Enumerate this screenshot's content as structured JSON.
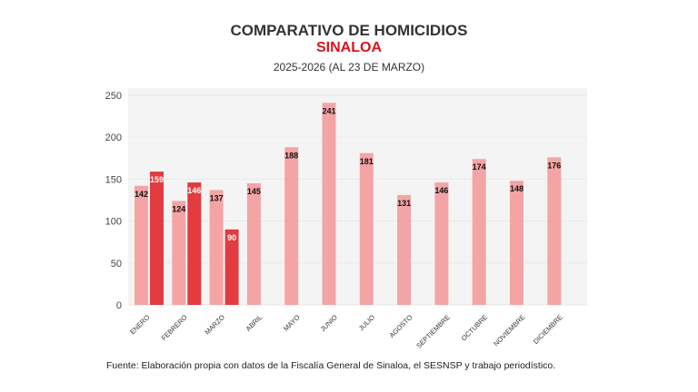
{
  "chart_data": {
    "type": "bar",
    "title": "COMPARATIVO DE HOMICIDIOS",
    "subtitle": "SINALOA",
    "subtitle2": "2025-2026 (AL 23 DE MARZO)",
    "categories": [
      "ENERO",
      "FEBRERO",
      "MARZO",
      "ABRIL",
      "MAYO",
      "JUNIO",
      "JULIO",
      "AGOSTO",
      "SEPTIEMBRE",
      "OCTUBRE",
      "NOVIEMBRE",
      "DICIEMBRE"
    ],
    "series": [
      {
        "values": [
          142,
          124,
          137,
          145,
          188,
          241,
          181,
          131,
          146,
          174,
          148,
          176
        ],
        "color": "#f4a4a4"
      },
      {
        "values": [
          159,
          146,
          90,
          null,
          null,
          null,
          null,
          null,
          null,
          null,
          null,
          null
        ],
        "color": "#e23b40"
      }
    ],
    "ylim": [
      0,
      250
    ],
    "yticks": [
      0,
      50,
      100,
      150,
      200,
      250
    ],
    "grid": true,
    "source": "Fuente: Elaboración propia con datos de la Fiscalía General de Sinaloa, el SESNSP y trabajo periodístico."
  }
}
